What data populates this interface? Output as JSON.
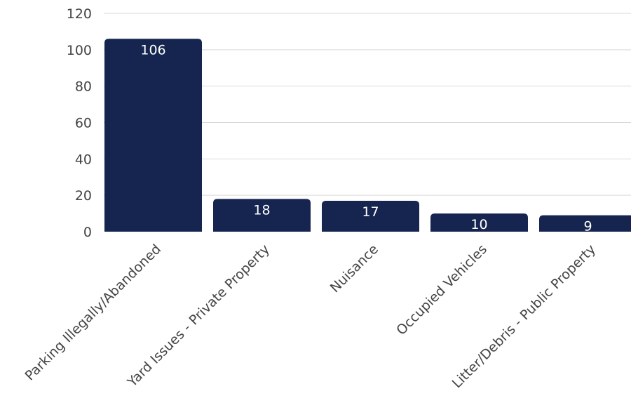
{
  "chart_data": {
    "type": "bar",
    "categories": [
      "Parking Illegally/Abandoned",
      "Yard Issues - Private Property",
      "Nuisance",
      "Occupied Vehicles",
      "Litter/Debris - Public Property"
    ],
    "values": [
      106,
      18,
      17,
      10,
      9
    ],
    "data_labels": [
      "106",
      "18",
      "17",
      "10",
      "9"
    ],
    "title": "",
    "xlabel": "",
    "ylabel": "",
    "ylim": [
      0,
      120
    ],
    "yticks": [
      0,
      20,
      40,
      60,
      80,
      100,
      120
    ],
    "ytick_labels": [
      "0",
      "20",
      "40",
      "60",
      "80",
      "100",
      "120"
    ],
    "grid": true,
    "legend": "none",
    "bar_color": "#15254f"
  }
}
